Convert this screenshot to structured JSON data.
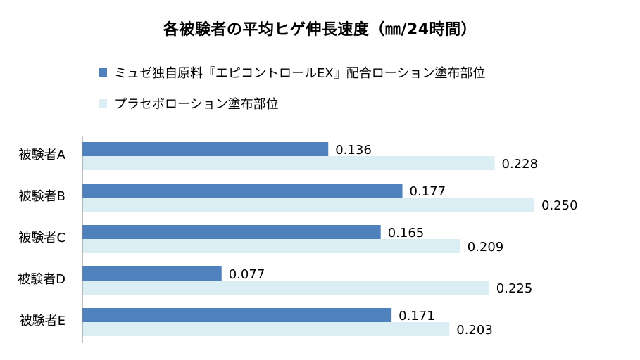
{
  "chart_data": {
    "type": "bar",
    "orientation": "horizontal",
    "title": "各被験者の平均ヒゲ伸長速度（㎜/24時間）",
    "categories": [
      "被験者A",
      "被験者B",
      "被験者C",
      "被験者D",
      "被験者E"
    ],
    "series": [
      {
        "name": "ミュゼ独自原料『エピコントロールEX』配合ローション塗布部位",
        "values": [
          0.136,
          0.177,
          0.165,
          0.077,
          0.171
        ],
        "labels": [
          "0.136",
          "0.177",
          "0.165",
          "0.077",
          "0.171"
        ],
        "color": "#4f81bd"
      },
      {
        "name": "プラセボローション塗布部位",
        "values": [
          0.228,
          0.25,
          0.209,
          0.225,
          0.203
        ],
        "labels": [
          "0.228",
          "0.250",
          "0.209",
          "0.225",
          "0.203"
        ],
        "color": "#dbeef4"
      }
    ],
    "xlim": [
      0,
      0.25
    ],
    "grid": false,
    "legend_position": "top-left",
    "axis_color": "#808080"
  }
}
